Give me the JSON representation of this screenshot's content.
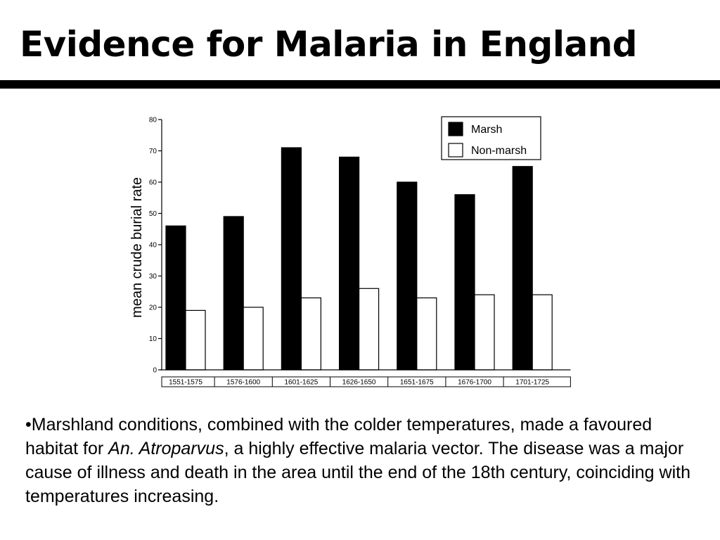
{
  "slide": {
    "title": "Evidence for Malaria in England",
    "bullet_symbol": "•",
    "paragraph": {
      "before": "Marshland conditions, combined with the colder temperatures, made a favoured habitat for ",
      "species": "An. Atroparvus",
      "after": ", a highly effective malaria vector.  The disease was a major cause of illness and death in the area until the end of the 18th century, coinciding with temperatures increasing."
    }
  },
  "chart_data": {
    "type": "bar",
    "categories": [
      "1551-1575",
      "1576-1600",
      "1601-1625",
      "1626-1650",
      "1651-1675",
      "1676-1700",
      "1701-1725"
    ],
    "series": [
      {
        "name": "Marsh",
        "values": [
          46,
          49,
          71,
          68,
          60,
          56,
          65
        ],
        "color": "#000000"
      },
      {
        "name": "Non-marsh",
        "values": [
          19,
          20,
          23,
          26,
          23,
          24,
          24
        ],
        "color": "#ffffff"
      }
    ],
    "xlabel": "",
    "ylabel": "mean crude burial rate",
    "ylim": [
      0,
      80
    ],
    "yticks": [
      "0",
      "10",
      "20",
      "30",
      "40",
      "50",
      "60",
      "70",
      "80"
    ],
    "legend_position": "top-right",
    "grid": false
  }
}
